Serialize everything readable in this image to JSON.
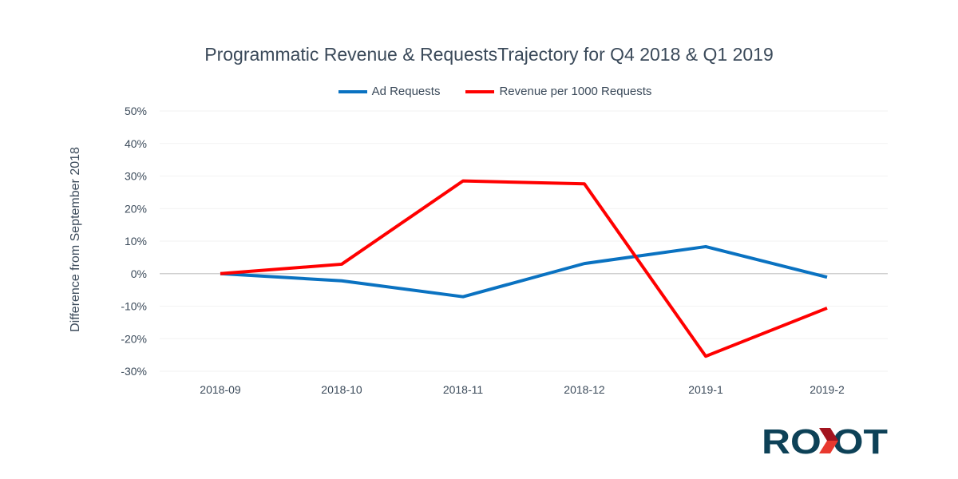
{
  "chart_data": {
    "type": "line",
    "title": "Programmatic Revenue & RequestsTrajectory for Q4 2018 & Q1 2019",
    "xlabel": "",
    "ylabel": "Difference from September 2018",
    "categories": [
      "2018-09",
      "2018-10",
      "2018-11",
      "2018-12",
      "2019-1",
      "2019-2"
    ],
    "ylim": [
      -30,
      50
    ],
    "yticks": [
      "50%",
      "40%",
      "30%",
      "20%",
      "10%",
      "0%",
      "-10%",
      "-20%",
      "-30%"
    ],
    "ytick_values": [
      50,
      40,
      30,
      20,
      10,
      0,
      -10,
      -20,
      -30
    ],
    "grid": true,
    "legend_position": "top",
    "series": [
      {
        "name": "Ad Requests",
        "color": "#0a72c1",
        "values": [
          0,
          -2.2,
          -7.1,
          3.1,
          8.3,
          -1.1
        ]
      },
      {
        "name": "Revenue per 1000 Requests",
        "color": "#ff0000",
        "values": [
          0,
          2.9,
          28.5,
          27.6,
          -25.4,
          -10.6
        ]
      }
    ]
  },
  "logo": {
    "text": "ROXOT",
    "color": "#0d4157",
    "accent": "#e8392f"
  }
}
